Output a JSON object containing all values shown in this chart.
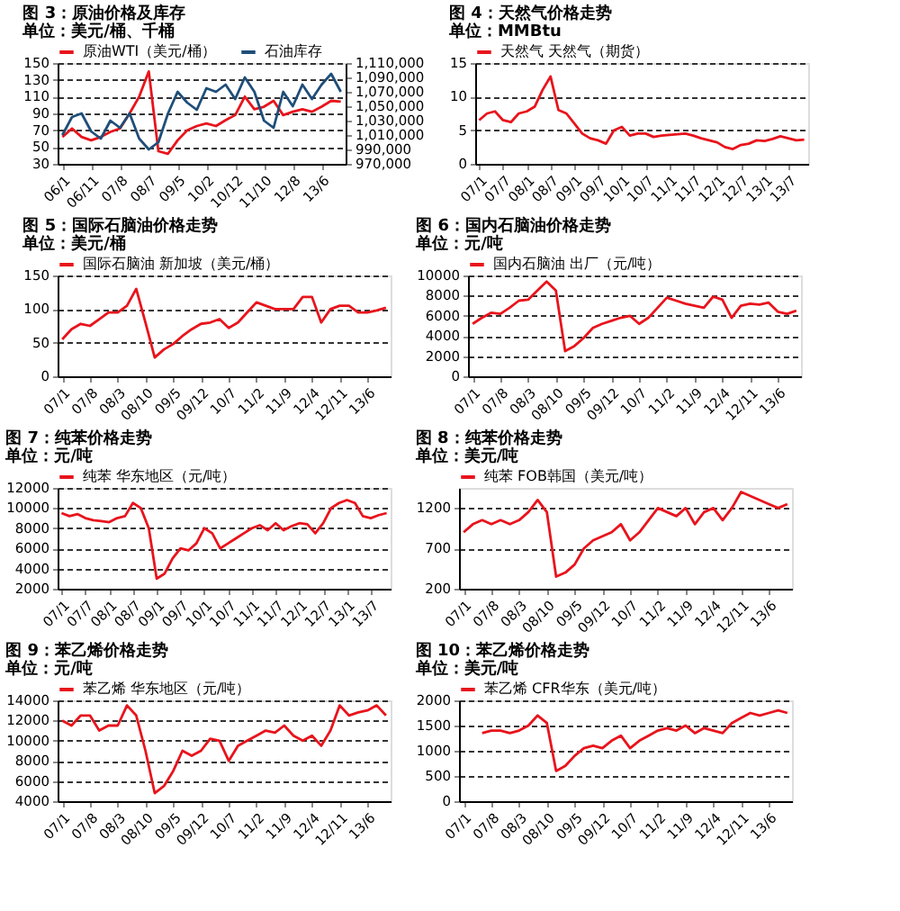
{
  "chart_data": [
    {
      "type": "line",
      "title": "图 3：原油价格及库存",
      "subtitle": "单位：美元/桶、千桶",
      "legend": "top",
      "grid": "y",
      "categories": [
        "06/1",
        null,
        null,
        "06/11",
        null,
        null,
        "07/8",
        null,
        null,
        "08/7",
        null,
        null,
        "09/5",
        null,
        null,
        "10/2",
        null,
        null,
        "10/12",
        null,
        null,
        "11/10",
        null,
        null,
        "12/8",
        null,
        null,
        "13/6",
        null,
        null
      ],
      "ylim": [
        30,
        150
      ],
      "yticks": [
        30,
        50,
        70,
        90,
        110,
        130,
        150
      ],
      "y2lim": [
        970000,
        1110000
      ],
      "y2ticks": [
        {
          "value": 970000,
          "label": "970,000"
        },
        {
          "value": 990000,
          "label": "990,000"
        },
        {
          "value": 1010000,
          "label": "1,010,000"
        },
        {
          "value": 1030000,
          "label": "1,030,000"
        },
        {
          "value": 1050000,
          "label": "1,050,000"
        },
        {
          "value": 1070000,
          "label": "1,070,000"
        },
        {
          "value": 1090000,
          "label": "1,090,000"
        },
        {
          "value": 1110000,
          "label": "1,110,000"
        }
      ],
      "series": [
        {
          "name": "原油WTI（美元/桶）",
          "color": "#e8141c",
          "values": [
            62,
            72,
            62,
            58,
            62,
            68,
            72,
            90,
            110,
            140,
            45,
            42,
            58,
            70,
            75,
            78,
            75,
            82,
            88,
            110,
            95,
            98,
            105,
            88,
            92,
            95,
            92,
            98,
            105,
            104
          ]
        },
        {
          "name": "石油库存",
          "color": "#1f4e79",
          "axis": "y2",
          "values": [
            1010000,
            1035000,
            1040000,
            1015000,
            1005000,
            1030000,
            1020000,
            1040000,
            1005000,
            990000,
            1000000,
            1040000,
            1070000,
            1055000,
            1045000,
            1075000,
            1070000,
            1080000,
            1060000,
            1090000,
            1070000,
            1030000,
            1020000,
            1070000,
            1050000,
            1080000,
            1060000,
            1080000,
            1095000,
            1070000
          ]
        }
      ]
    },
    {
      "type": "line",
      "title": "图 4：天然气价格走势",
      "subtitle": "单位：MMBtu",
      "legend": "top",
      "grid": "y",
      "categories": [
        "07/1",
        null,
        null,
        "07/7",
        null,
        null,
        "08/1",
        null,
        null,
        "08/7",
        null,
        null,
        "09/1",
        null,
        null,
        "09/7",
        null,
        null,
        "10/1",
        null,
        null,
        "10/7",
        null,
        null,
        "11/1",
        null,
        null,
        "11/7",
        null,
        null,
        "12/1",
        null,
        null,
        "12/7",
        null,
        null,
        "13/1",
        null,
        null,
        "13/7",
        null,
        null
      ],
      "ylim": [
        0,
        15
      ],
      "yticks": [
        0,
        5,
        10,
        15
      ],
      "series": [
        {
          "name": "天然气 天然气（期货）",
          "color": "#e8141c",
          "values": [
            6.5,
            7.5,
            7.8,
            6.5,
            6.2,
            7.5,
            7.8,
            8.5,
            11,
            13,
            8,
            7.5,
            6,
            4.5,
            3.8,
            3.5,
            3,
            5,
            5.5,
            4.2,
            4.5,
            4.5,
            4,
            4.2,
            4.3,
            4.4,
            4.5,
            4.2,
            3.8,
            3.5,
            3.2,
            2.5,
            2.2,
            2.8,
            3,
            3.5,
            3.4,
            3.7,
            4.1,
            3.8,
            3.5,
            3.6
          ]
        }
      ]
    },
    {
      "type": "line",
      "title": "图 5：国际石脑油价格走势",
      "subtitle": "单位：美元/桶",
      "legend": "top",
      "grid": "y",
      "categories": [
        "07/1",
        null,
        null,
        "07/8",
        null,
        null,
        "08/3",
        null,
        null,
        "08/10",
        null,
        null,
        "09/5",
        null,
        null,
        "09/12",
        null,
        null,
        "10/7",
        null,
        null,
        "11/2",
        null,
        null,
        "11/9",
        null,
        null,
        "12/4",
        null,
        null,
        "12/11",
        null,
        null,
        "13/6",
        null,
        null
      ],
      "ylim": [
        0,
        150
      ],
      "yticks": [
        0,
        50,
        100,
        150
      ],
      "series": [
        {
          "name": "国际石脑油 新加坡（美元/桶）",
          "color": "#e8141c",
          "values": [
            55,
            70,
            78,
            75,
            85,
            95,
            95,
            105,
            130,
            80,
            28,
            40,
            48,
            60,
            70,
            78,
            80,
            85,
            72,
            80,
            95,
            110,
            105,
            100,
            100,
            100,
            118,
            118,
            80,
            100,
            105,
            105,
            95,
            95,
            98,
            102
          ]
        }
      ]
    },
    {
      "type": "line",
      "title": "图 6：国内石脑油价格走势",
      "subtitle": "单位：元/吨",
      "legend": "top",
      "grid": "y",
      "categories": [
        "07/1",
        null,
        null,
        "07/8",
        null,
        null,
        "08/3",
        null,
        null,
        "08/10",
        null,
        null,
        "09/5",
        null,
        null,
        "09/12",
        null,
        null,
        "10/7",
        null,
        null,
        "11/2",
        null,
        null,
        "11/9",
        null,
        null,
        "12/4",
        null,
        null,
        "12/11",
        null,
        null,
        "13/6",
        null,
        null
      ],
      "ylim": [
        0,
        10000
      ],
      "yticks": [
        0,
        2000,
        4000,
        6000,
        8000,
        10000
      ],
      "series": [
        {
          "name": "国内石脑油 出厂（元/吨）",
          "color": "#e8141c",
          "values": [
            5200,
            5800,
            6300,
            6200,
            6800,
            7500,
            7600,
            8500,
            9400,
            8500,
            2500,
            3000,
            3800,
            4800,
            5200,
            5500,
            5800,
            6000,
            5200,
            5800,
            6800,
            7800,
            7500,
            7200,
            7000,
            6800,
            7900,
            7600,
            5800,
            7000,
            7200,
            7100,
            7300,
            6400,
            6200,
            6500
          ]
        }
      ]
    },
    {
      "type": "line",
      "title": "图 7：纯苯价格走势",
      "subtitle": "单位：元/吨",
      "legend": "top",
      "grid": "y",
      "categories": [
        "07/1",
        null,
        null,
        "07/7",
        null,
        null,
        "08/1",
        null,
        null,
        "08/7",
        null,
        null,
        "09/1",
        null,
        null,
        "09/7",
        null,
        null,
        "10/1",
        null,
        null,
        "10/7",
        null,
        null,
        "11/1",
        null,
        null,
        "11/7",
        null,
        null,
        "12/1",
        null,
        null,
        "12/7",
        null,
        null,
        "13/1",
        null,
        null,
        "13/7",
        null,
        null
      ],
      "ylim": [
        2000,
        12000
      ],
      "yticks": [
        2000,
        4000,
        6000,
        8000,
        10000,
        12000
      ],
      "series": [
        {
          "name": "纯苯 华东地区（元/吨）",
          "color": "#e8141c",
          "values": [
            9500,
            9200,
            9400,
            9000,
            8800,
            8700,
            8600,
            9000,
            9200,
            10500,
            10000,
            8000,
            3000,
            3500,
            5000,
            6000,
            5800,
            6500,
            8000,
            7500,
            6000,
            6500,
            7000,
            7500,
            8000,
            8300,
            7800,
            8500,
            7800,
            8200,
            8500,
            8400,
            7500,
            8500,
            10000,
            10500,
            10800,
            10500,
            9200,
            9000,
            9300,
            9500
          ]
        }
      ]
    },
    {
      "type": "line",
      "title": "图 8：纯苯价格走势",
      "subtitle": "单位：美元/吨",
      "legend": "top",
      "grid": "y",
      "categories": [
        "07/1",
        null,
        null,
        "07/8",
        null,
        null,
        "08/3",
        null,
        null,
        "08/10",
        null,
        null,
        "09/5",
        null,
        null,
        "09/12",
        null,
        null,
        "10/7",
        null,
        null,
        "11/2",
        null,
        null,
        "11/9",
        null,
        null,
        "12/4",
        null,
        null,
        "12/11",
        null,
        null,
        "13/6",
        null,
        null
      ],
      "ylim": [
        200,
        1450
      ],
      "yticks": [
        200,
        700,
        1200
      ],
      "series": [
        {
          "name": "纯苯 FOB韩国（美元/吨）",
          "color": "#e8141c",
          "values": [
            900,
            1000,
            1050,
            1000,
            1050,
            1000,
            1050,
            1150,
            1300,
            1150,
            350,
            400,
            500,
            700,
            800,
            850,
            900,
            1000,
            800,
            900,
            1050,
            1200,
            1150,
            1100,
            1200,
            1000,
            1150,
            1200,
            1050,
            1200,
            1400,
            1350,
            1300,
            1250,
            1200,
            1250
          ]
        }
      ]
    },
    {
      "type": "line",
      "title": "图 9：苯乙烯价格走势",
      "subtitle": "单位：元/吨",
      "legend": "top",
      "grid": "y",
      "categories": [
        "07/1",
        null,
        null,
        "07/8",
        null,
        null,
        "08/3",
        null,
        null,
        "08/10",
        null,
        null,
        "09/5",
        null,
        null,
        "09/12",
        null,
        null,
        "10/7",
        null,
        null,
        "11/2",
        null,
        null,
        "11/9",
        null,
        null,
        "12/4",
        null,
        null,
        "12/11",
        null,
        null,
        "13/6",
        null,
        null
      ],
      "ylim": [
        4000,
        14000
      ],
      "yticks": [
        4000,
        6000,
        8000,
        10000,
        12000,
        14000
      ],
      "series": [
        {
          "name": "苯乙烯 华东地区（元/吨）",
          "color": "#e8141c",
          "values": [
            12000,
            11500,
            12500,
            12500,
            11000,
            11500,
            11500,
            13500,
            12500,
            9000,
            4800,
            5500,
            7000,
            9000,
            8500,
            9000,
            10200,
            10000,
            8000,
            9500,
            10000,
            10500,
            11000,
            10800,
            11500,
            10500,
            10000,
            10500,
            9500,
            11000,
            13500,
            12500,
            12800,
            13000,
            13500,
            12500
          ]
        }
      ]
    },
    {
      "type": "line",
      "title": "图 10：苯乙烯价格走势",
      "subtitle": "单位：美元/吨",
      "legend": "top",
      "grid": "y",
      "categories": [
        "07/1",
        null,
        null,
        "07/8",
        null,
        null,
        "08/3",
        null,
        null,
        "08/10",
        null,
        null,
        "09/5",
        null,
        null,
        "09/12",
        null,
        null,
        "10/7",
        null,
        null,
        "11/2",
        null,
        null,
        "11/9",
        null,
        null,
        "12/4",
        null,
        null,
        "12/11",
        null,
        null,
        "13/6",
        null,
        null
      ],
      "ylim": [
        0,
        2000
      ],
      "yticks": [
        0,
        500,
        1000,
        1500,
        2000
      ],
      "series": [
        {
          "name": "苯乙烯 CFR华东（美元/吨）",
          "color": "#e8141c",
          "values": [
            null,
            null,
            1350,
            1400,
            1400,
            1350,
            1400,
            1500,
            1700,
            1550,
            600,
            700,
            900,
            1050,
            1100,
            1050,
            1200,
            1300,
            1050,
            1200,
            1300,
            1400,
            1450,
            1400,
            1500,
            1350,
            1450,
            1400,
            1350,
            1550,
            1650,
            1750,
            1700,
            1750,
            1800,
            1750
          ]
        }
      ]
    }
  ]
}
